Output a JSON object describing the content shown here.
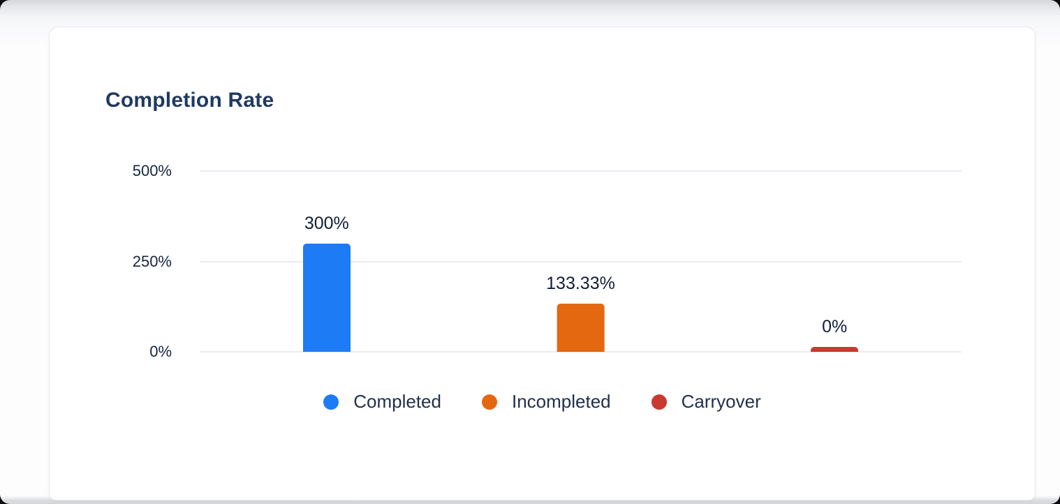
{
  "chart_data": {
    "type": "bar",
    "title": "Completion Rate",
    "categories": [
      "Completed",
      "Incompleted",
      "Carryover"
    ],
    "values": [
      300,
      133.33,
      0
    ],
    "value_labels": [
      "300%",
      "133.33%",
      "0%"
    ],
    "colors": [
      "#1e7bf6",
      "#e3680f",
      "#c8392f"
    ],
    "ylim": [
      0,
      500
    ],
    "yticks": [
      0,
      250,
      500
    ],
    "ytick_labels": [
      "0%",
      "250%",
      "500%"
    ],
    "grid": true,
    "legend_position": "bottom"
  }
}
